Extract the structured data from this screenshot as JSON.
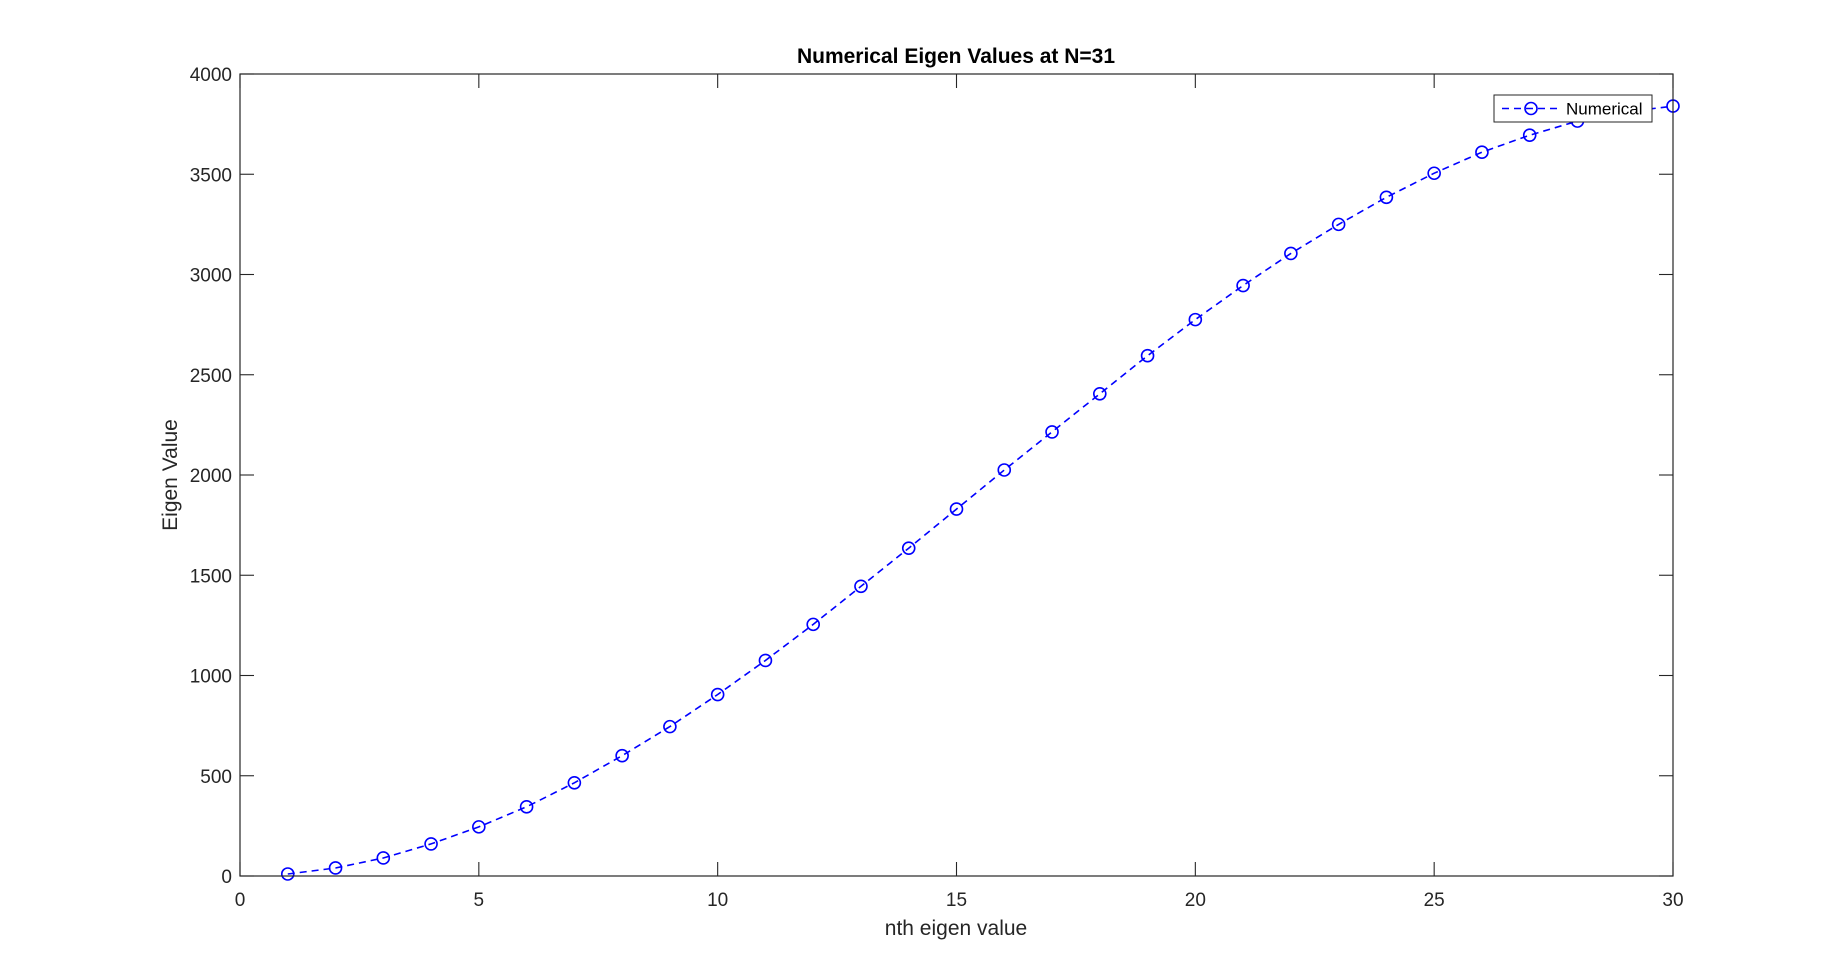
{
  "chart_data": {
    "type": "line",
    "title": "Numerical Eigen Values at N=31",
    "xlabel": "nth eigen value",
    "ylabel": "Eigen Value",
    "xlim": [
      0,
      30
    ],
    "ylim": [
      0,
      4000
    ],
    "xticks": [
      0,
      5,
      10,
      15,
      20,
      25,
      30
    ],
    "yticks": [
      0,
      500,
      1000,
      1500,
      2000,
      2500,
      3000,
      3500,
      4000
    ],
    "grid": false,
    "legend_position": "top-right",
    "series": [
      {
        "name": "Numerical",
        "color": "#0000ff",
        "line_style": "dashed",
        "marker": "circle",
        "x": [
          1,
          2,
          3,
          4,
          5,
          6,
          7,
          8,
          9,
          10,
          11,
          12,
          13,
          14,
          15,
          16,
          17,
          18,
          19,
          20,
          21,
          22,
          23,
          24,
          25,
          26,
          27,
          28,
          29,
          30
        ],
        "y": [
          10,
          40,
          90,
          160,
          245,
          345,
          465,
          600,
          745,
          905,
          1075,
          1255,
          1445,
          1635,
          1830,
          2025,
          2215,
          2405,
          2595,
          2775,
          2945,
          3105,
          3250,
          3385,
          3505,
          3610,
          3695,
          3765,
          3810,
          3840
        ]
      }
    ]
  }
}
